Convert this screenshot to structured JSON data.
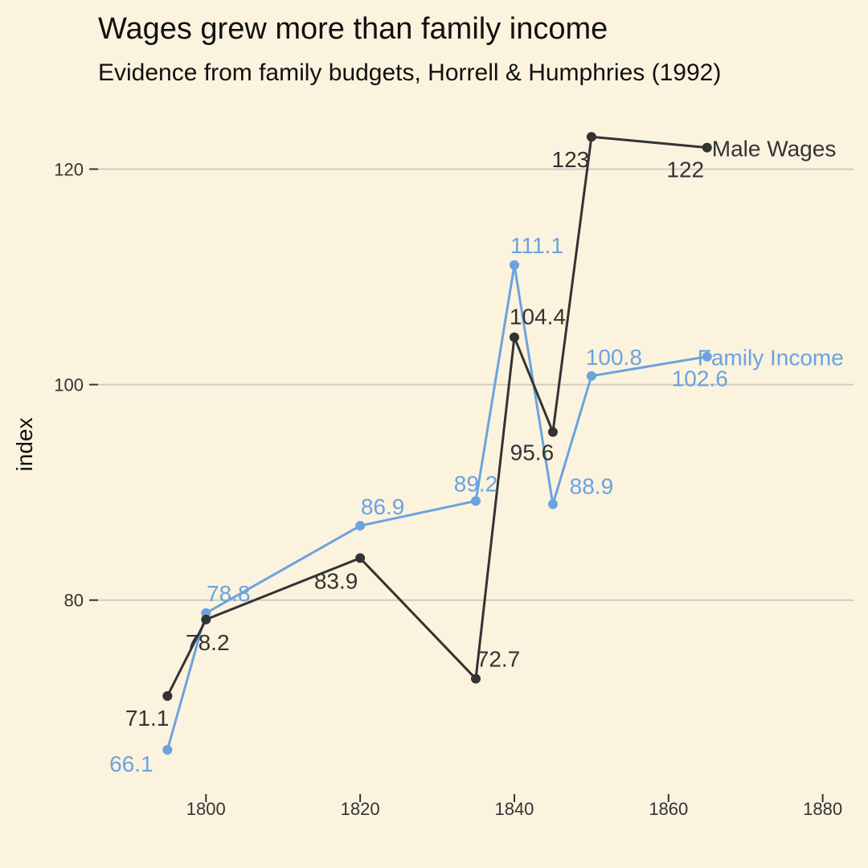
{
  "chart_data": {
    "type": "line",
    "title": "Wages grew more than family income",
    "subtitle": "Evidence from family budgets, Horrell & Humphries (1992)",
    "xlabel": "",
    "ylabel": "index",
    "xlim": [
      1786,
      1884
    ],
    "ylim": [
      62,
      126
    ],
    "xticks": [
      1800,
      1820,
      1840,
      1860,
      1880
    ],
    "yticks": [
      80,
      100,
      120
    ],
    "grid": "horizontal",
    "legend": "none",
    "series": [
      {
        "name": "Male Wages",
        "color": "#333333",
        "points": [
          {
            "x": 1795,
            "y": 71.1,
            "label": "71.1"
          },
          {
            "x": 1800,
            "y": 78.2,
            "label": "78.2"
          },
          {
            "x": 1820,
            "y": 83.9,
            "label": "83.9"
          },
          {
            "x": 1835,
            "y": 72.7,
            "label": "72.7"
          },
          {
            "x": 1840,
            "y": 104.4,
            "label": "104.4"
          },
          {
            "x": 1845,
            "y": 95.6,
            "label": "95.6"
          },
          {
            "x": 1850,
            "y": 123,
            "label": "123"
          },
          {
            "x": 1865,
            "y": 122,
            "label": "122"
          }
        ]
      },
      {
        "name": "Family Income",
        "color": "#6AA3E0",
        "points": [
          {
            "x": 1795,
            "y": 66.1,
            "label": "66.1"
          },
          {
            "x": 1800,
            "y": 78.8,
            "label": "78.8"
          },
          {
            "x": 1820,
            "y": 86.9,
            "label": "86.9"
          },
          {
            "x": 1835,
            "y": 89.2,
            "label": "89.2"
          },
          {
            "x": 1840,
            "y": 111.1,
            "label": "111.1"
          },
          {
            "x": 1845,
            "y": 88.9,
            "label": "88.9"
          },
          {
            "x": 1850,
            "y": 100.8,
            "label": "100.8"
          },
          {
            "x": 1865,
            "y": 102.6,
            "label": "102.6"
          }
        ]
      }
    ]
  }
}
